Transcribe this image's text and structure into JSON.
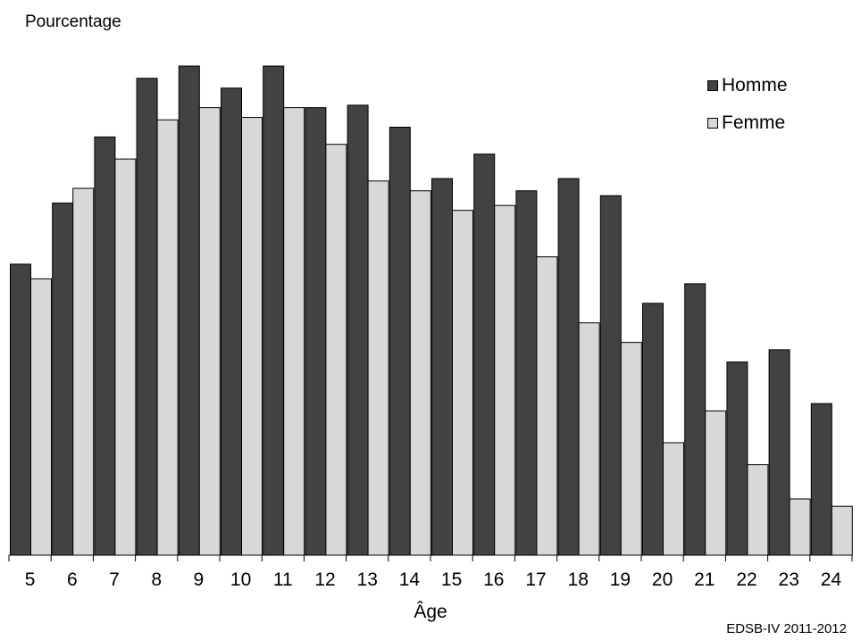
{
  "chart_data": {
    "type": "bar",
    "ylabel": "Pourcentage",
    "xlabel": "Âge",
    "source": "EDSB-IV 2011-2012",
    "categories": [
      "5",
      "6",
      "7",
      "8",
      "9",
      "10",
      "11",
      "12",
      "13",
      "14",
      "15",
      "16",
      "17",
      "18",
      "19",
      "20",
      "21",
      "22",
      "23",
      "24"
    ],
    "ylim": [
      0,
      100
    ],
    "grid": false,
    "legend_position": "top-right",
    "series": [
      {
        "name": "Homme",
        "color": "#424242",
        "values": [
          59.5,
          72.0,
          85.5,
          97.5,
          100.0,
          95.5,
          100.0,
          91.5,
          92.0,
          87.5,
          77.0,
          82.0,
          74.5,
          77.0,
          73.5,
          51.5,
          55.5,
          39.5,
          42.0,
          31.0
        ]
      },
      {
        "name": "Femme",
        "color": "#d8d8d8",
        "values": [
          56.5,
          75.0,
          81.0,
          89.0,
          91.5,
          89.5,
          91.5,
          84.0,
          76.5,
          74.5,
          70.5,
          71.5,
          61.0,
          47.5,
          43.5,
          23.0,
          29.5,
          18.5,
          11.5,
          10.0
        ]
      }
    ]
  }
}
